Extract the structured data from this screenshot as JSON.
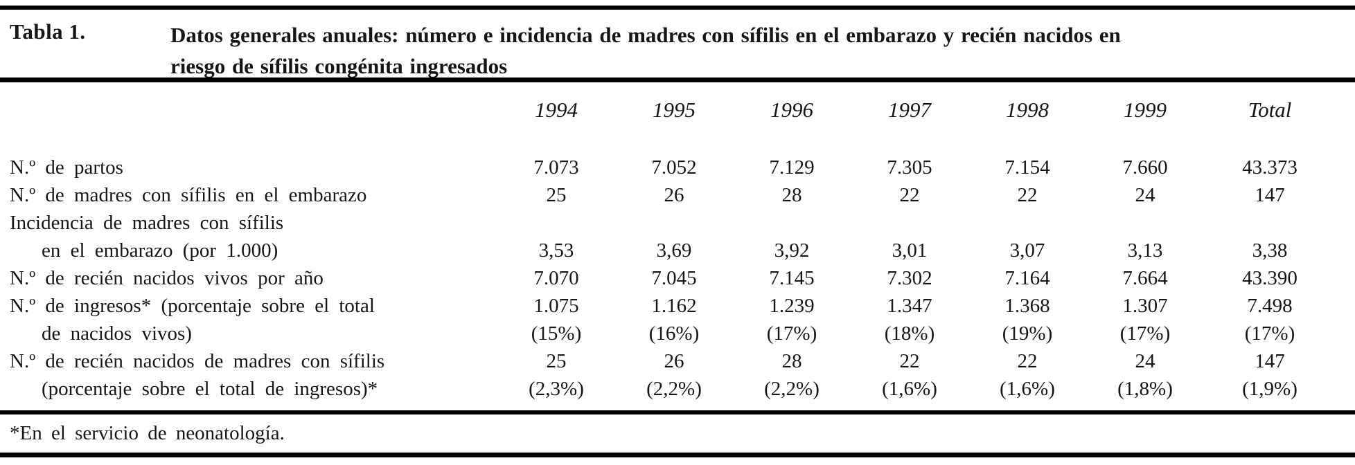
{
  "header": {
    "label": "Tabla 1.",
    "title": "Datos generales anuales: número e incidencia de madres con sífilis en el embarazo y recién nacidos en\nriesgo de sífilis congénita ingresados"
  },
  "table": {
    "columns": [
      "1994",
      "1995",
      "1996",
      "1997",
      "1998",
      "1999",
      "Total"
    ],
    "rows": [
      {
        "label": "N.º de partos",
        "values": [
          "7.073",
          "7.052",
          "7.129",
          "7.305",
          "7.154",
          "7.660",
          "43.373"
        ]
      },
      {
        "label": "N.º de madres con sífilis en el embarazo",
        "values": [
          "25",
          "26",
          "28",
          "22",
          "22",
          "24",
          "147"
        ]
      },
      {
        "label": "Incidencia de madres con sífilis",
        "values": [
          "",
          "",
          "",
          "",
          "",
          "",
          ""
        ]
      },
      {
        "label": "en el embarazo (por 1.000)",
        "values": [
          "3,53",
          "3,69",
          "3,92",
          "3,01",
          "3,07",
          "3,13",
          "3,38"
        ]
      },
      {
        "label": "N.º de recién nacidos vivos por año",
        "values": [
          "7.070",
          "7.045",
          "7.145",
          "7.302",
          "7.164",
          "7.664",
          "43.390"
        ]
      },
      {
        "label": "N.º de ingresos* (porcentaje sobre el total",
        "values": [
          "1.075",
          "1.162",
          "1.239",
          "1.347",
          "1.368",
          "1.307",
          "7.498"
        ]
      },
      {
        "label": "de nacidos vivos)",
        "values": [
          "(15%)",
          "(16%)",
          "(17%)",
          "(18%)",
          "(19%)",
          "(17%)",
          "(17%)"
        ]
      },
      {
        "label": "N.º de recién nacidos de madres con sífilis",
        "values": [
          "25",
          "26",
          "28",
          "22",
          "22",
          "24",
          "147"
        ]
      },
      {
        "label": "(porcentaje sobre el total de ingresos)*",
        "values": [
          "(2,3%)",
          "(2,2%)",
          "(2,2%)",
          "(1,6%)",
          "(1,6%)",
          "(1,8%)",
          "(1,9%)"
        ]
      }
    ]
  },
  "footnote": "*En el servicio de neonatología."
}
